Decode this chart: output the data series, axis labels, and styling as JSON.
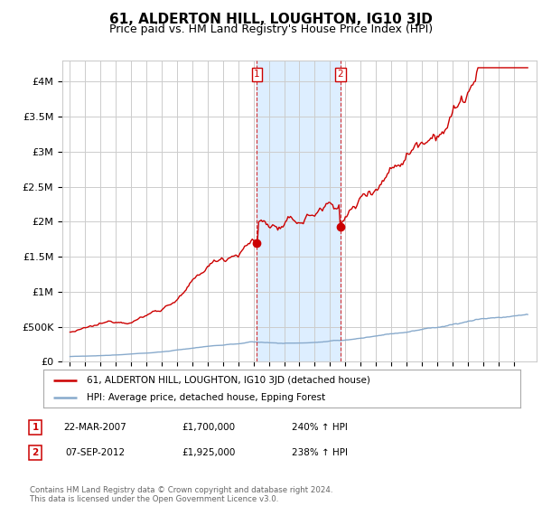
{
  "title": "61, ALDERTON HILL, LOUGHTON, IG10 3JD",
  "subtitle": "Price paid vs. HM Land Registry's House Price Index (HPI)",
  "ylabel_ticks": [
    "£0",
    "£500K",
    "£1M",
    "£1.5M",
    "£2M",
    "£2.5M",
    "£3M",
    "£3.5M",
    "£4M"
  ],
  "ytick_values": [
    0,
    500000,
    1000000,
    1500000,
    2000000,
    2500000,
    3000000,
    3500000,
    4000000
  ],
  "ylim": [
    0,
    4300000
  ],
  "xlim_start": 1994.5,
  "xlim_end": 2025.5,
  "red_line_color": "#cc0000",
  "blue_line_color": "#88aacc",
  "background_color": "#ffffff",
  "grid_color": "#cccccc",
  "shaded_region": [
    2007.2,
    2012.7
  ],
  "shaded_color": "#ddeeff",
  "marker1_x": 2007.22,
  "marker1_y": 1700000,
  "marker2_x": 2012.68,
  "marker2_y": 1925000,
  "legend_red_label": "61, ALDERTON HILL, LOUGHTON, IG10 3JD (detached house)",
  "legend_blue_label": "HPI: Average price, detached house, Epping Forest",
  "table_rows": [
    {
      "num": "1",
      "date": "22-MAR-2007",
      "price": "£1,700,000",
      "hpi": "240% ↑ HPI"
    },
    {
      "num": "2",
      "date": "07-SEP-2012",
      "price": "£1,925,000",
      "hpi": "238% ↑ HPI"
    }
  ],
  "footer": "Contains HM Land Registry data © Crown copyright and database right 2024.\nThis data is licensed under the Open Government Licence v3.0.",
  "title_fontsize": 11,
  "subtitle_fontsize": 9,
  "tick_fontsize": 8
}
